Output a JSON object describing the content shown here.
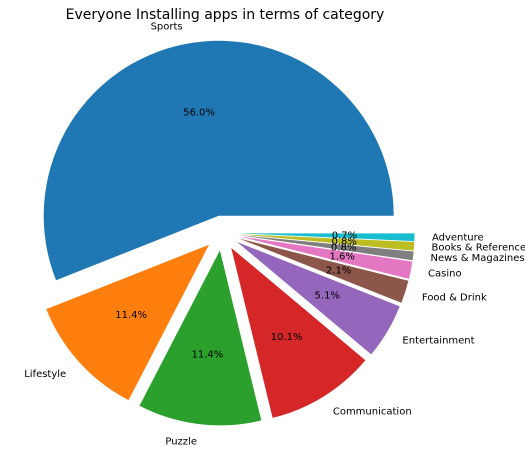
{
  "chart_data": {
    "type": "pie",
    "title": "Everyone Installing apps in terms of category",
    "categories": [
      "Sports",
      "Lifestyle",
      "Puzzle",
      "Communication",
      "Entertainment",
      "Food & Drink",
      "Casino",
      "News & Magazines",
      "Books & Reference",
      "Adventure"
    ],
    "values": [
      56.0,
      11.4,
      11.4,
      10.1,
      5.1,
      2.1,
      1.6,
      0.8,
      0.8,
      0.7
    ],
    "percent_labels": [
      "56.0%",
      "11.4%",
      "11.4%",
      "10.1%",
      "5.1%",
      "2.1%",
      "1.6%",
      "0.8%",
      "0.8%",
      "0.7%"
    ],
    "colors": [
      "#1f77b4",
      "#ff7f0e",
      "#2ca02c",
      "#d62728",
      "#9467bd",
      "#8c564b",
      "#e377c2",
      "#7f7f7f",
      "#bcbd22",
      "#17becf"
    ],
    "explode": true,
    "start_angle": 0,
    "direction": "counterclockwise"
  }
}
